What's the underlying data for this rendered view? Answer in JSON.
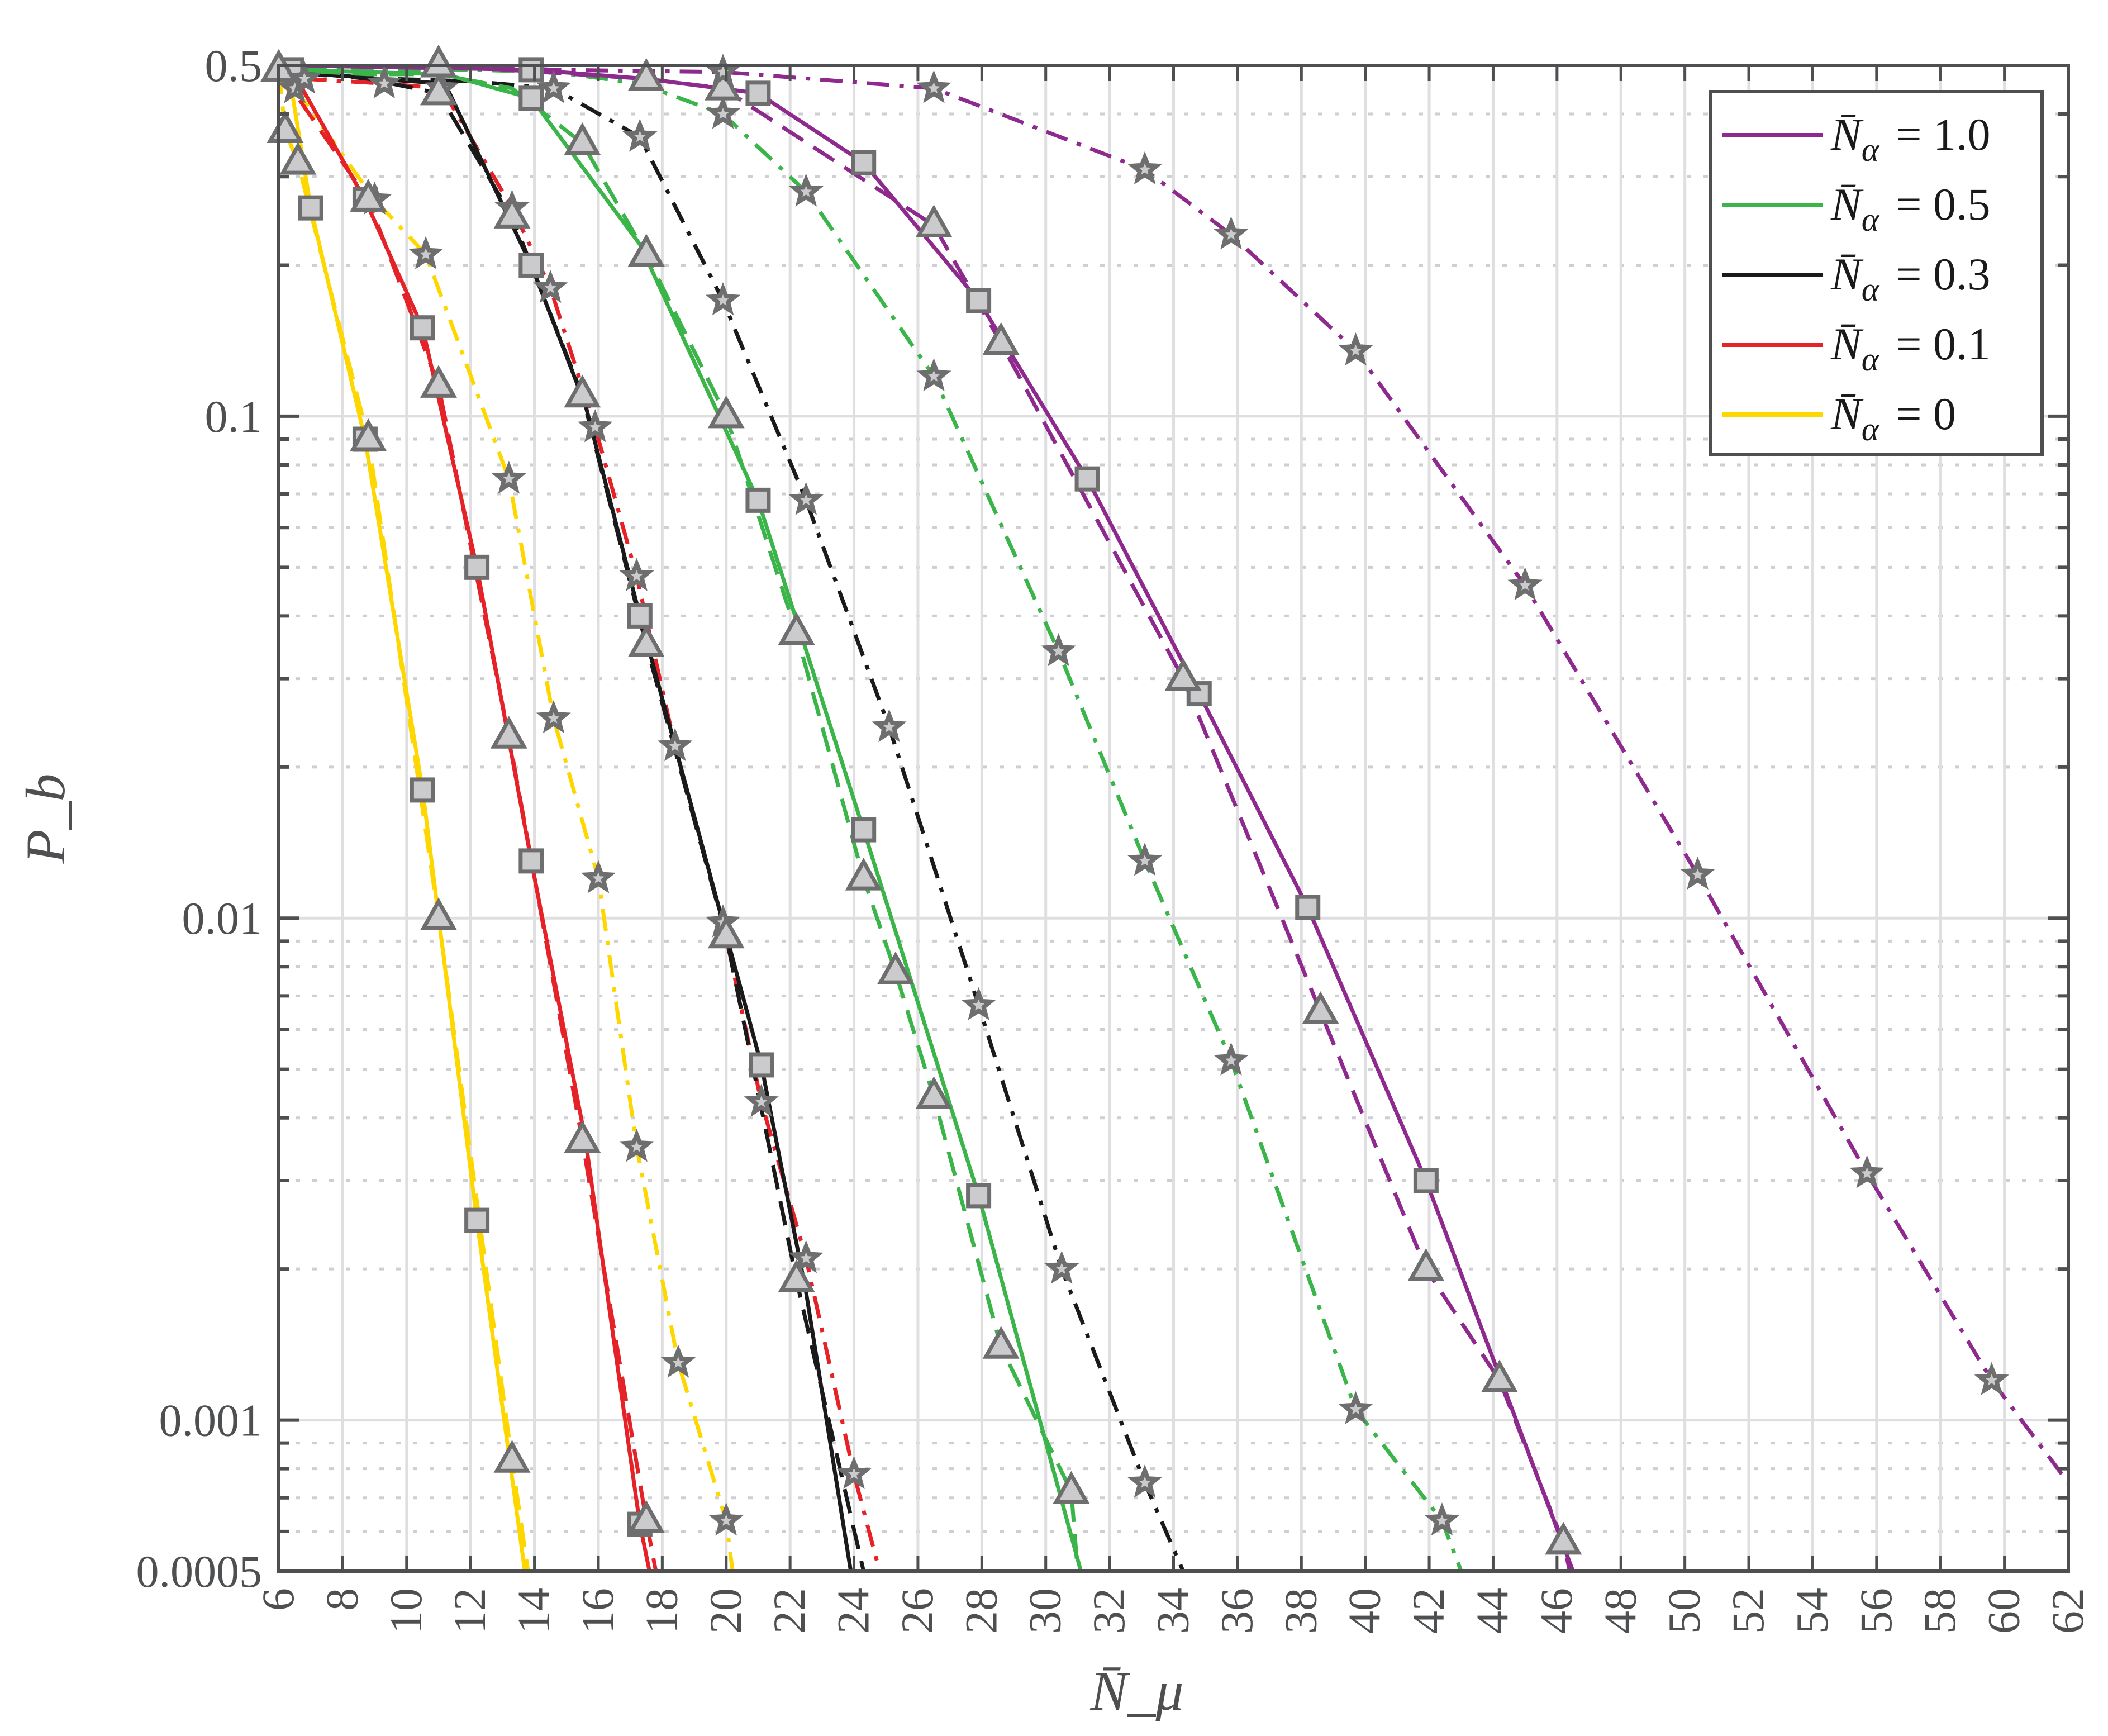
{
  "chart_data": {
    "type": "line",
    "title": "",
    "xlabel": "N̄_μ",
    "ylabel": "P_b",
    "xscale": "linear",
    "yscale": "log",
    "xlim": [
      6,
      62
    ],
    "ylim": [
      0.0005,
      0.5
    ],
    "grid": true,
    "legend_position": "upper right",
    "x_ticks": [
      6,
      8,
      10,
      12,
      14,
      16,
      18,
      20,
      22,
      24,
      26,
      28,
      30,
      32,
      34,
      36,
      38,
      40,
      42,
      44,
      46,
      48,
      50,
      52,
      54,
      56,
      58,
      60,
      62
    ],
    "y_ticks": [
      {
        "value": 0.5,
        "label": "0.5"
      },
      {
        "value": 0.1,
        "label": "0.1"
      },
      {
        "value": 0.01,
        "label": "0.01"
      },
      {
        "value": 0.001,
        "label": "0.001"
      },
      {
        "value": 0.0005,
        "label": "0.0005"
      }
    ],
    "legend": [
      {
        "label_symbol": "N̄",
        "label_sub": "α",
        "label_value": "= 1.0",
        "color": "#8e2a8e"
      },
      {
        "label_symbol": "N̄",
        "label_sub": "α",
        "label_value": "= 0.5",
        "color": "#3bb44a"
      },
      {
        "label_symbol": "N̄",
        "label_sub": "α",
        "label_value": "= 0.3",
        "color": "#1a1a1a"
      },
      {
        "label_symbol": "N̄",
        "label_sub": "α",
        "label_value": "= 0.1",
        "color": "#e52228"
      },
      {
        "label_symbol": "N̄",
        "label_sub": "α",
        "label_value": "= 0",
        "color": "#ffd700"
      }
    ],
    "marker_style": {
      "fill": "#cbcbcd",
      "stroke": "#6e6e6e"
    },
    "series": [
      {
        "name": "N̄α = 0 (solid, squares)",
        "group": "0",
        "color": "#ffd700",
        "line": "solid",
        "marker": "square",
        "x": [
          6.3,
          7.0,
          8.7,
          10.5,
          12.2,
          13.7
        ],
        "y": [
          0.49,
          0.26,
          0.09,
          0.018,
          0.0025,
          0.0005
        ],
        "marker_idx": [
          1,
          2,
          3,
          4
        ]
      },
      {
        "name": "N̄α = 0 (dashed, triangles)",
        "group": "0",
        "color": "#ffd700",
        "line": "dashed",
        "marker": "triangle",
        "x": [
          6.0,
          6.2,
          6.6,
          8.8,
          11.0,
          13.3,
          13.8
        ],
        "y": [
          0.49,
          0.37,
          0.32,
          0.09,
          0.01,
          0.00083,
          0.0005
        ],
        "marker_idx": [
          0,
          1,
          2,
          3,
          4,
          5
        ]
      },
      {
        "name": "N̄α = 0 (dash-dot, stars)",
        "group": "0",
        "color": "#ffd700",
        "line": "dashdot",
        "marker": "star",
        "x": [
          6.5,
          9.0,
          10.6,
          13.2,
          14.6,
          16.0,
          17.2,
          18.5,
          20.0,
          20.2
        ],
        "y": [
          0.45,
          0.27,
          0.21,
          0.075,
          0.025,
          0.012,
          0.0035,
          0.0013,
          0.00063,
          0.0005
        ],
        "marker_idx": [
          0,
          1,
          2,
          3,
          4,
          5,
          6,
          7,
          8
        ]
      },
      {
        "name": "N̄α = 0.1 (solid, squares)",
        "group": "0.1",
        "color": "#e52228",
        "line": "solid",
        "marker": "square",
        "x": [
          6.4,
          8.7,
          10.5,
          12.2,
          13.9,
          15.6,
          17.3,
          17.6
        ],
        "y": [
          0.49,
          0.27,
          0.15,
          0.05,
          0.013,
          0.0036,
          0.00062,
          0.0005
        ],
        "marker_idx": [
          0,
          1,
          2,
          3,
          4,
          6
        ]
      },
      {
        "name": "N̄α = 0.1 (dashed, triangles)",
        "group": "0.1",
        "color": "#e52228",
        "line": "dashed",
        "marker": "triangle",
        "x": [
          6.0,
          8.8,
          11.0,
          13.2,
          15.5,
          17.5,
          17.8
        ],
        "y": [
          0.49,
          0.27,
          0.115,
          0.023,
          0.0036,
          0.00063,
          0.0005
        ],
        "marker_idx": [
          0,
          1,
          2,
          3,
          4,
          5
        ]
      },
      {
        "name": "N̄α = 0.1 (dash-dot, stars)",
        "group": "0.1",
        "color": "#e52228",
        "line": "dashdot",
        "marker": "star",
        "x": [
          6.8,
          9.3,
          11.1,
          13.3,
          14.5,
          15.9,
          17.2,
          18.4,
          19.9,
          21.1,
          22.5,
          24.0,
          24.8
        ],
        "y": [
          0.47,
          0.46,
          0.45,
          0.26,
          0.18,
          0.095,
          0.048,
          0.022,
          0.0098,
          0.0043,
          0.0021,
          0.00078,
          0.0005
        ],
        "marker_idx": [
          0,
          1,
          2,
          3,
          4,
          5,
          6,
          7,
          8,
          9,
          10,
          11
        ]
      },
      {
        "name": "N̄α = 0.3 (solid, squares)",
        "group": "0.3",
        "color": "#1a1a1a",
        "line": "solid",
        "marker": "square",
        "x": [
          6.2,
          9.0,
          11.2,
          13.9,
          15.6,
          17.3,
          19.9,
          21.1,
          22.5,
          23.9
        ],
        "y": [
          0.49,
          0.47,
          0.46,
          0.2,
          0.105,
          0.04,
          0.0098,
          0.0051,
          0.0018,
          0.0005
        ],
        "marker_idx": [
          3,
          5,
          7
        ]
      },
      {
        "name": "N̄α = 0.3 (dashed, triangles)",
        "group": "0.3",
        "color": "#1a1a1a",
        "line": "dashed",
        "marker": "triangle",
        "x": [
          6.0,
          8.8,
          11.0,
          13.3,
          15.5,
          17.5,
          20.0,
          22.2,
          24.3
        ],
        "y": [
          0.49,
          0.47,
          0.44,
          0.25,
          0.11,
          0.035,
          0.0092,
          0.0019,
          0.0005
        ],
        "marker_idx": [
          2,
          3,
          4,
          5,
          6,
          7
        ]
      },
      {
        "name": "N̄α = 0.3 (dash-dot, stars)",
        "group": "0.3",
        "color": "#1a1a1a",
        "line": "dashdot",
        "marker": "star",
        "x": [
          6.8,
          9.5,
          12.0,
          14.6,
          17.3,
          19.9,
          22.5,
          25.1,
          27.9,
          30.5,
          33.1,
          34.3
        ],
        "y": [
          0.48,
          0.47,
          0.465,
          0.45,
          0.36,
          0.17,
          0.068,
          0.024,
          0.0067,
          0.002,
          0.00075,
          0.0005
        ],
        "marker_idx": [
          3,
          4,
          5,
          6,
          7,
          8,
          9,
          10
        ]
      },
      {
        "name": "N̄α = 0.5 (solid, squares)",
        "group": "0.5",
        "color": "#3bb44a",
        "line": "solid",
        "marker": "square",
        "x": [
          6.2,
          11.2,
          13.9,
          17.3,
          21.0,
          24.3,
          27.9,
          31.1
        ],
        "y": [
          0.49,
          0.48,
          0.43,
          0.22,
          0.068,
          0.015,
          0.0028,
          0.0005
        ],
        "marker_idx": [
          2,
          4,
          5,
          6
        ]
      },
      {
        "name": "N̄α = 0.5 (dashed, triangles)",
        "group": "0.5",
        "color": "#3bb44a",
        "line": "dashed",
        "marker": "triangle",
        "x": [
          6.0,
          8.8,
          11.0,
          13.3,
          15.5,
          17.5,
          20.0,
          22.2,
          24.3,
          25.3,
          26.5,
          28.6,
          30.8,
          31.0
        ],
        "y": [
          0.49,
          0.48,
          0.48,
          0.45,
          0.35,
          0.21,
          0.1,
          0.037,
          0.012,
          0.0078,
          0.0044,
          0.0014,
          0.00072,
          0.0005
        ],
        "marker_idx": [
          4,
          5,
          6,
          7,
          8,
          9,
          10,
          11,
          12
        ]
      },
      {
        "name": "N̄α = 0.5 (dash-dot, stars)",
        "group": "0.5",
        "color": "#3bb44a",
        "line": "dashdot",
        "marker": "star",
        "x": [
          6.8,
          9.5,
          12.0,
          14.6,
          17.3,
          19.9,
          22.5,
          26.5,
          30.4,
          33.1,
          35.8,
          39.7,
          42.4,
          43.0
        ],
        "y": [
          0.49,
          0.49,
          0.49,
          0.485,
          0.46,
          0.4,
          0.28,
          0.12,
          0.034,
          0.013,
          0.0052,
          0.00105,
          0.00063,
          0.0005
        ],
        "marker_idx": [
          5,
          6,
          7,
          8,
          9,
          10,
          11,
          12
        ]
      },
      {
        "name": "N̄α = 1.0 (solid, squares)",
        "group": "1.0",
        "color": "#8e2a8e",
        "line": "solid",
        "marker": "square",
        "x": [
          6.2,
          13.9,
          17.5,
          21.0,
          24.3,
          27.9,
          31.3,
          34.8,
          38.2,
          41.9,
          46.5
        ],
        "y": [
          0.5,
          0.49,
          0.47,
          0.44,
          0.32,
          0.17,
          0.075,
          0.028,
          0.0105,
          0.003,
          0.0005
        ],
        "marker_idx": [
          1,
          3,
          4,
          5,
          6,
          7,
          8,
          9
        ]
      },
      {
        "name": "N̄α = 1.0 (dashed, triangles)",
        "group": "1.0",
        "color": "#8e2a8e",
        "line": "dashed",
        "marker": "triangle",
        "x": [
          6.0,
          11.0,
          17.5,
          19.9,
          26.5,
          28.6,
          34.3,
          38.6,
          41.9,
          44.2,
          46.2,
          46.4
        ],
        "y": [
          0.5,
          0.5,
          0.47,
          0.45,
          0.24,
          0.14,
          0.03,
          0.0065,
          0.002,
          0.0012,
          0.00057,
          0.0005
        ],
        "marker_idx": [
          1,
          2,
          3,
          4,
          5,
          6,
          7,
          8,
          9,
          10
        ]
      },
      {
        "name": "N̄α = 1.0 (dash-dot, stars)",
        "group": "1.0",
        "color": "#8e2a8e",
        "line": "dashdot",
        "marker": "star",
        "x": [
          6.8,
          9.5,
          12.0,
          14.6,
          19.9,
          26.5,
          33.1,
          35.8,
          39.7,
          45.0,
          50.4,
          55.7,
          59.6,
          62.0
        ],
        "y": [
          0.5,
          0.5,
          0.5,
          0.49,
          0.485,
          0.45,
          0.31,
          0.23,
          0.135,
          0.046,
          0.0122,
          0.0031,
          0.0012,
          0.00075
        ],
        "marker_idx": [
          4,
          5,
          6,
          7,
          8,
          9,
          10,
          11,
          12
        ]
      }
    ]
  }
}
